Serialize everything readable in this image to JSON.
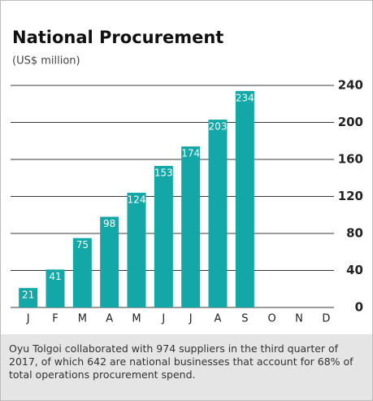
{
  "chart_data": {
    "type": "bar",
    "title": "National Procurement",
    "subtitle": "(US$ million)",
    "categories": [
      "J",
      "F",
      "M",
      "A",
      "M",
      "J",
      "J",
      "A",
      "S",
      "O",
      "N",
      "D"
    ],
    "values": [
      21,
      41,
      75,
      98,
      124,
      153,
      174,
      203,
      234,
      null,
      null,
      null
    ],
    "color": "#14a7a7",
    "ylim": [
      0,
      240
    ],
    "yticks": [
      0,
      40,
      80,
      120,
      160,
      200,
      240
    ],
    "grid": true,
    "note": "Oyu Tolgoi collaborated with 974 suppliers in the third quarter of 2017, of which 642 are national businesses that account for 68% of total operations procurement spend."
  }
}
